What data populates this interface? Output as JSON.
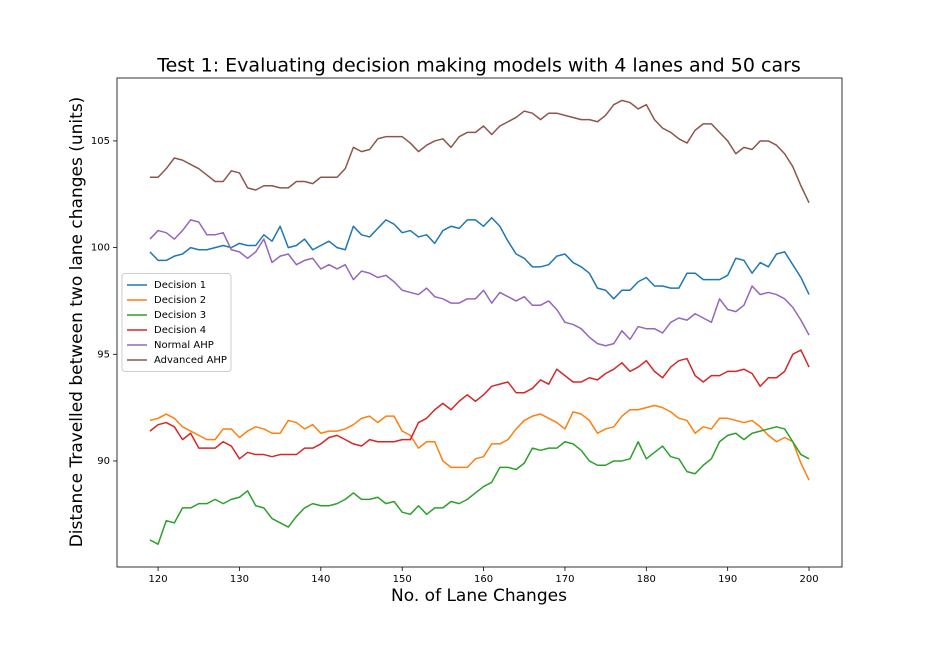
{
  "chart_data": {
    "type": "line",
    "title": "Test 1: Evaluating decision making models with 4 lanes and 50 cars",
    "x_label": "No. of Lane Changes",
    "y_label": "Distance Travelled between two lane changes (units)",
    "x": [
      119,
      120,
      121,
      122,
      123,
      124,
      125,
      126,
      127,
      128,
      129,
      130,
      131,
      132,
      133,
      134,
      135,
      136,
      137,
      138,
      139,
      140,
      141,
      142,
      143,
      144,
      145,
      146,
      147,
      148,
      149,
      150,
      151,
      152,
      153,
      154,
      155,
      156,
      157,
      158,
      159,
      160,
      161,
      162,
      163,
      164,
      165,
      166,
      167,
      168,
      169,
      170,
      171,
      172,
      173,
      174,
      175,
      176,
      177,
      178,
      179,
      180,
      181,
      182,
      183,
      184,
      185,
      186,
      187,
      188,
      189,
      190,
      191,
      192,
      193,
      194,
      195,
      196,
      197,
      198,
      199,
      200
    ],
    "series": [
      {
        "name": "Decision 1",
        "color": "#1f77b4",
        "values": [
          99.8,
          99.4,
          99.4,
          99.6,
          99.7,
          100.0,
          99.9,
          99.9,
          100.0,
          100.1,
          100.0,
          100.2,
          100.1,
          100.1,
          100.6,
          100.3,
          101.0,
          100.0,
          100.1,
          100.4,
          99.9,
          100.1,
          100.3,
          100.0,
          99.9,
          101.0,
          100.6,
          100.5,
          100.9,
          101.3,
          101.1,
          100.7,
          100.8,
          100.5,
          100.6,
          100.2,
          100.8,
          101.0,
          100.9,
          101.3,
          101.3,
          101.0,
          101.4,
          101.0,
          100.3,
          99.7,
          99.5,
          99.1,
          99.1,
          99.2,
          99.6,
          99.7,
          99.3,
          99.1,
          98.8,
          98.1,
          98.0,
          97.6,
          98.0,
          98.0,
          98.4,
          98.6,
          98.2,
          98.2,
          98.1,
          98.1,
          98.8,
          98.8,
          98.5,
          98.5,
          98.5,
          98.7,
          99.5,
          99.4,
          98.8,
          99.3,
          99.1,
          99.7,
          99.8,
          99.2,
          98.6,
          97.8
        ]
      },
      {
        "name": "Decision 2",
        "color": "#ff7f0e",
        "values": [
          91.9,
          92.0,
          92.2,
          92.0,
          91.6,
          91.4,
          91.2,
          91.0,
          91.0,
          91.5,
          91.5,
          91.1,
          91.4,
          91.6,
          91.5,
          91.3,
          91.3,
          91.9,
          91.8,
          91.5,
          91.7,
          91.3,
          91.4,
          91.4,
          91.5,
          91.7,
          92.0,
          92.1,
          91.8,
          92.1,
          92.1,
          91.4,
          91.2,
          90.6,
          90.9,
          90.9,
          90.0,
          89.7,
          89.7,
          89.7,
          90.1,
          90.2,
          90.8,
          90.8,
          91.0,
          91.5,
          91.9,
          92.1,
          92.2,
          92.0,
          91.8,
          91.5,
          92.3,
          92.2,
          91.9,
          91.3,
          91.5,
          91.6,
          92.1,
          92.4,
          92.4,
          92.5,
          92.6,
          92.5,
          92.3,
          92.0,
          91.9,
          91.3,
          91.6,
          91.5,
          92.0,
          92.0,
          91.9,
          91.8,
          91.9,
          91.6,
          91.2,
          90.9,
          91.1,
          90.9,
          89.9,
          89.1
        ]
      },
      {
        "name": "Decision 3",
        "color": "#2ca02c",
        "values": [
          86.3,
          86.1,
          87.2,
          87.1,
          87.8,
          87.8,
          88.0,
          88.0,
          88.2,
          88.0,
          88.2,
          88.3,
          88.6,
          87.9,
          87.8,
          87.3,
          87.1,
          86.9,
          87.4,
          87.8,
          88.0,
          87.9,
          87.9,
          88.0,
          88.2,
          88.5,
          88.2,
          88.2,
          88.3,
          88.0,
          88.1,
          87.6,
          87.5,
          87.9,
          87.5,
          87.8,
          87.8,
          88.1,
          88.0,
          88.2,
          88.5,
          88.8,
          89.0,
          89.7,
          89.7,
          89.6,
          89.9,
          90.6,
          90.5,
          90.6,
          90.6,
          90.9,
          90.8,
          90.5,
          90.0,
          89.8,
          89.8,
          90.0,
          90.0,
          90.1,
          90.9,
          90.1,
          90.4,
          90.7,
          90.2,
          90.1,
          89.5,
          89.4,
          89.8,
          90.1,
          90.9,
          91.2,
          91.3,
          91.0,
          91.3,
          91.4,
          91.5,
          91.6,
          91.5,
          90.9,
          90.3,
          90.1
        ]
      },
      {
        "name": "Decision 4",
        "color": "#d62728",
        "values": [
          91.4,
          91.7,
          91.8,
          91.6,
          91.0,
          91.3,
          90.6,
          90.6,
          90.6,
          90.9,
          90.7,
          90.1,
          90.4,
          90.3,
          90.3,
          90.2,
          90.3,
          90.3,
          90.3,
          90.6,
          90.6,
          90.8,
          91.1,
          91.2,
          91.0,
          90.8,
          90.7,
          91.0,
          90.9,
          90.9,
          90.9,
          91.0,
          91.0,
          91.8,
          92.0,
          92.4,
          92.7,
          92.4,
          92.8,
          93.1,
          92.8,
          93.1,
          93.5,
          93.6,
          93.7,
          93.2,
          93.2,
          93.4,
          93.8,
          93.6,
          94.3,
          94.0,
          93.7,
          93.7,
          93.9,
          93.8,
          94.1,
          94.3,
          94.6,
          94.2,
          94.4,
          94.7,
          94.2,
          93.9,
          94.4,
          94.7,
          94.8,
          94.0,
          93.7,
          94.0,
          94.0,
          94.2,
          94.2,
          94.3,
          94.1,
          93.5,
          93.9,
          93.9,
          94.2,
          95.0,
          95.2,
          94.4
        ]
      },
      {
        "name": "Normal AHP",
        "color": "#9467bd",
        "values": [
          100.4,
          100.8,
          100.7,
          100.4,
          100.8,
          101.3,
          101.2,
          100.6,
          100.6,
          100.7,
          99.9,
          99.8,
          99.5,
          99.8,
          100.4,
          99.3,
          99.6,
          99.7,
          99.2,
          99.4,
          99.5,
          99.0,
          99.2,
          99.0,
          99.2,
          98.5,
          98.9,
          98.8,
          98.6,
          98.7,
          98.4,
          98.0,
          97.9,
          97.8,
          98.1,
          97.7,
          97.6,
          97.4,
          97.4,
          97.6,
          97.6,
          98.0,
          97.4,
          97.9,
          97.7,
          97.5,
          97.7,
          97.3,
          97.3,
          97.5,
          97.1,
          96.5,
          96.4,
          96.2,
          95.8,
          95.5,
          95.4,
          95.5,
          96.1,
          95.7,
          96.3,
          96.2,
          96.2,
          96.0,
          96.5,
          96.7,
          96.6,
          96.9,
          96.7,
          96.5,
          97.6,
          97.1,
          97.0,
          97.3,
          98.2,
          97.8,
          97.9,
          97.8,
          97.6,
          97.2,
          96.6,
          95.9
        ]
      },
      {
        "name": "Advanced AHP",
        "color": "#8c564b",
        "values": [
          103.3,
          103.3,
          103.7,
          104.2,
          104.1,
          103.9,
          103.7,
          103.4,
          103.1,
          103.1,
          103.6,
          103.5,
          102.8,
          102.7,
          102.9,
          102.9,
          102.8,
          102.8,
          103.1,
          103.1,
          103.0,
          103.3,
          103.3,
          103.3,
          103.7,
          104.7,
          104.5,
          104.6,
          105.1,
          105.2,
          105.2,
          105.2,
          104.9,
          104.5,
          104.8,
          105.0,
          105.1,
          104.7,
          105.2,
          105.4,
          105.4,
          105.7,
          105.3,
          105.7,
          105.9,
          106.1,
          106.4,
          106.3,
          106.0,
          106.3,
          106.3,
          106.2,
          106.1,
          106.0,
          106.0,
          105.9,
          106.2,
          106.7,
          106.9,
          106.8,
          106.5,
          106.7,
          106.0,
          105.6,
          105.4,
          105.1,
          104.9,
          105.5,
          105.8,
          105.8,
          105.4,
          105.0,
          104.4,
          104.7,
          104.6,
          105.0,
          105.0,
          104.8,
          104.4,
          103.8,
          102.9,
          102.1
        ]
      }
    ],
    "xlim": [
      114.95,
      204.05
    ],
    "ylim": [
      85.03,
      107.95
    ],
    "xticks": [
      120,
      130,
      140,
      150,
      160,
      170,
      180,
      190,
      200
    ],
    "yticks": [
      90,
      95,
      100,
      105
    ],
    "legend": "center left",
    "grid": false
  }
}
